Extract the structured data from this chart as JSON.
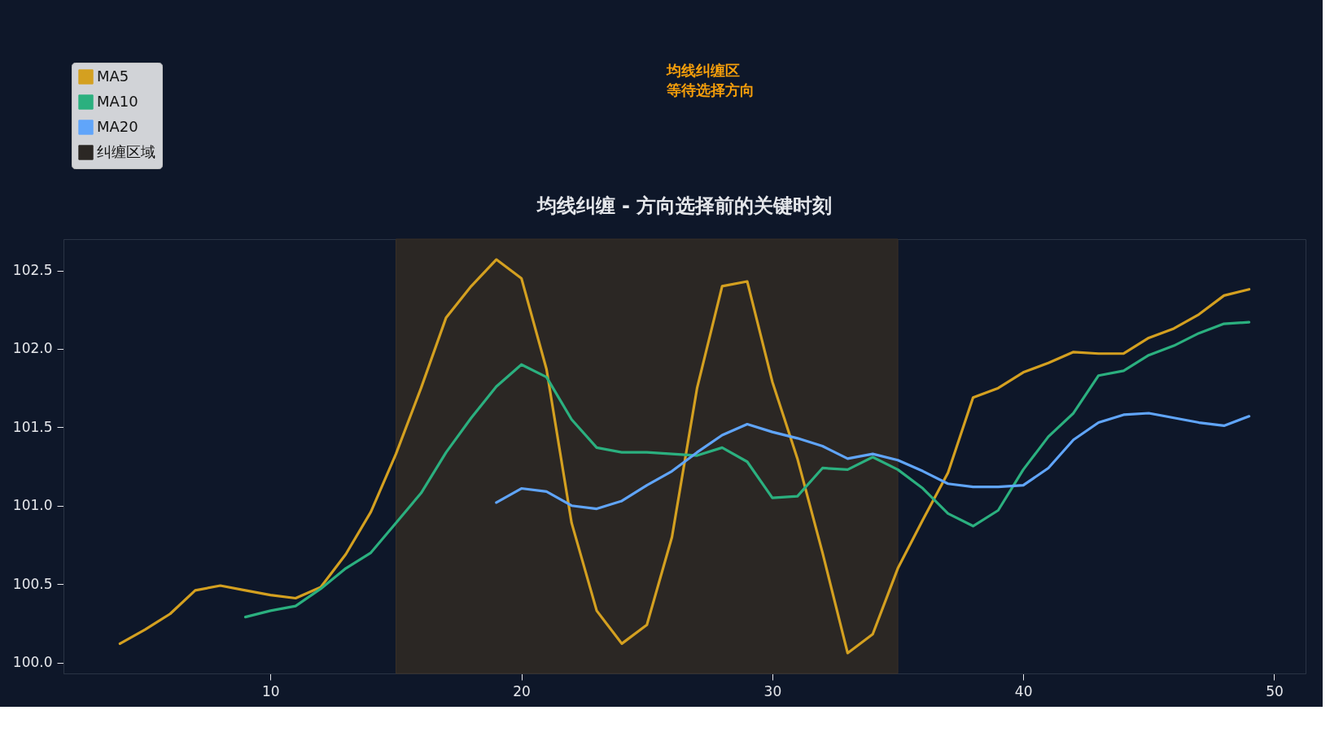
{
  "chart_data": {
    "type": "line",
    "title": "均线纠缠 - 方向选择前的关键时刻",
    "annotations": [
      "均线纠缠区",
      "等待选择方向"
    ],
    "xlim": [
      1.75,
      51.25
    ],
    "xticks": [
      10,
      20,
      30,
      40,
      50
    ],
    "ylim": [
      99.93,
      102.7
    ],
    "yticks": [
      {
        "value": 100,
        "label": "100.0"
      },
      {
        "value": 100.5,
        "label": "100.5"
      },
      {
        "value": 101,
        "label": "101.0"
      },
      {
        "value": 101.5,
        "label": "101.5"
      },
      {
        "value": 102,
        "label": "102.0"
      },
      {
        "value": 102.5,
        "label": "102.5"
      }
    ],
    "grid": false,
    "legend": "top left",
    "marker": "none",
    "line_style": "solid",
    "bands": [
      {
        "axis": "x",
        "from": 15,
        "to": 35,
        "label": "纠缠区域",
        "color": "#2b2724"
      }
    ],
    "series": [
      {
        "name": "MA5",
        "color": "#d4a020",
        "x": [
          4,
          5,
          6,
          7,
          8,
          9,
          10,
          11,
          12,
          13,
          14,
          15,
          16,
          17,
          18,
          19,
          20,
          21,
          22,
          23,
          24,
          25,
          26,
          27,
          28,
          29,
          30,
          31,
          32,
          33,
          34,
          35,
          36,
          37,
          38,
          39,
          40,
          41,
          42,
          43,
          44,
          45,
          46,
          47,
          48,
          49
        ],
        "values": [
          100.12,
          100.21,
          100.31,
          100.46,
          100.49,
          100.46,
          100.43,
          100.41,
          100.48,
          100.69,
          100.96,
          101.33,
          101.75,
          102.2,
          102.4,
          102.57,
          102.45,
          101.87,
          100.89,
          100.33,
          100.12,
          100.24,
          100.8,
          101.75,
          102.4,
          102.43,
          101.79,
          101.3,
          100.7,
          100.06,
          100.18,
          100.6,
          100.91,
          101.21,
          101.69,
          101.75,
          101.85,
          101.91,
          101.98,
          101.97,
          101.97,
          102.07,
          102.13,
          102.22,
          102.34,
          102.38
        ]
      },
      {
        "name": "MA10",
        "color": "#2bb07f",
        "x": [
          9,
          10,
          11,
          12,
          13,
          14,
          15,
          16,
          17,
          18,
          19,
          20,
          21,
          22,
          23,
          24,
          25,
          26,
          27,
          28,
          29,
          30,
          31,
          32,
          33,
          34,
          35,
          36,
          37,
          38,
          39,
          40,
          41,
          42,
          43,
          44,
          45,
          46,
          47,
          48,
          49
        ],
        "values": [
          100.29,
          100.33,
          100.36,
          100.47,
          100.6,
          100.7,
          100.89,
          101.08,
          101.34,
          101.56,
          101.76,
          101.9,
          101.82,
          101.55,
          101.37,
          101.34,
          101.34,
          101.33,
          101.32,
          101.37,
          101.28,
          101.05,
          101.06,
          101.24,
          101.23,
          101.31,
          101.23,
          101.11,
          100.95,
          100.87,
          100.97,
          101.23,
          101.44,
          101.59,
          101.83,
          101.86,
          101.96,
          102.02,
          102.1,
          102.16,
          102.17
        ]
      },
      {
        "name": "MA20",
        "color": "#60a5fa",
        "x": [
          19,
          20,
          21,
          22,
          23,
          24,
          25,
          26,
          27,
          28,
          29,
          30,
          31,
          32,
          33,
          34,
          35,
          36,
          37,
          38,
          39,
          40,
          41,
          42,
          43,
          44,
          45,
          46,
          47,
          48,
          49
        ],
        "values": [
          101.02,
          101.11,
          101.09,
          101.0,
          100.98,
          101.03,
          101.13,
          101.22,
          101.34,
          101.45,
          101.52,
          101.47,
          101.43,
          101.38,
          101.3,
          101.33,
          101.29,
          101.22,
          101.14,
          101.12,
          101.12,
          101.13,
          101.24,
          101.42,
          101.53,
          101.58,
          101.59,
          101.56,
          101.53,
          101.51,
          101.57
        ]
      }
    ]
  }
}
